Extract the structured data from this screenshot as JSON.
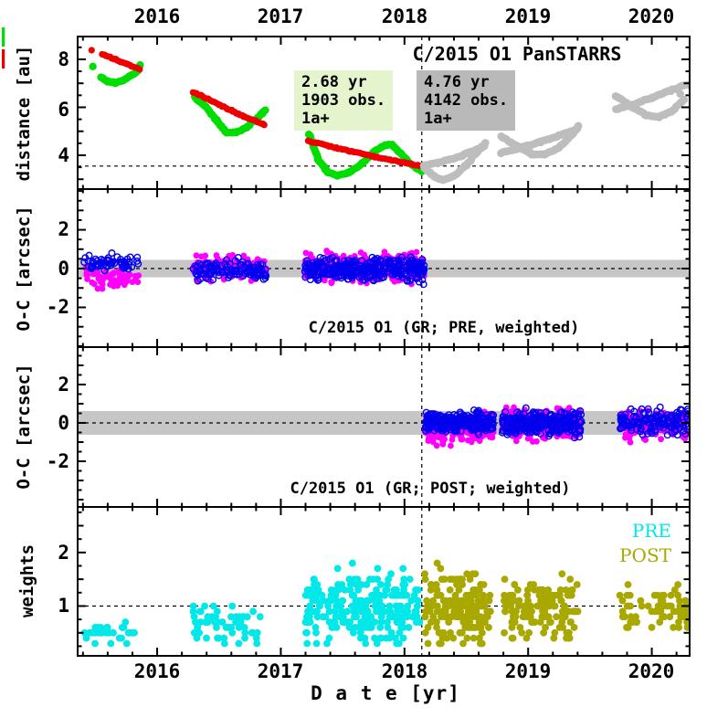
{
  "colors": {
    "red": "#ee0000",
    "green": "#00dd00",
    "gray": "#bdbdbd",
    "blue": "#0000ee",
    "magenta": "#ff00ff",
    "cyan": "#00e8e8",
    "olive": "#a8a800",
    "band": "#c6c6c6",
    "ann_green_bg": "#e4f4cc",
    "ann_gray_bg": "#b9b9b9",
    "axis": "#000000"
  },
  "axis": {
    "x_title": "D a t e [yr]",
    "x_tick_labels": [
      "2016",
      "2017",
      "2018",
      "2019",
      "2020"
    ],
    "x_tick_years": [
      2016,
      2017,
      2018,
      2019,
      2020
    ],
    "x_minor_step": 0.2,
    "x_range": [
      2015.357,
      2020.306
    ]
  },
  "legend_marks": [
    {
      "name": "geocentric-mark",
      "color_key": "green"
    },
    {
      "name": "heliocentric-mark",
      "color_key": "red"
    }
  ],
  "chart_data": [
    {
      "type": "scatter",
      "title": "C/2015 O1 PanSTARRS",
      "ylabel": "distance [au]",
      "ylim": [
        2.59,
        8.95
      ],
      "yticks": [
        4,
        6,
        8
      ],
      "ytick_labels": [
        "4",
        "6",
        "8"
      ],
      "yminor": 0.5,
      "ymedium": 1.0,
      "hline": 3.55,
      "vline": 2018.14,
      "annotations": [
        {
          "lines": [
            "2.68 yr",
            "1903 obs.",
            "1a+"
          ],
          "bg_key": "ann_green_bg"
        },
        {
          "lines": [
            "4.76 yr",
            "4142 obs.",
            "1a+"
          ],
          "bg_key": "ann_gray_bg"
        }
      ],
      "series": [
        {
          "name": "distance-geocentric-observed",
          "color_key": "green",
          "marker": "dot",
          "r": 4.2,
          "curves": [
            [
              [
                2015.545,
                7.26
              ],
              [
                2015.6,
                7.08
              ],
              [
                2015.66,
                7.02
              ],
              [
                2015.72,
                7.12
              ],
              [
                2015.79,
                7.32
              ],
              [
                2015.85,
                7.55
              ]
            ],
            [
              [
                2016.3,
                6.42
              ],
              [
                2016.4,
                6.0
              ],
              [
                2016.48,
                5.46
              ],
              [
                2016.56,
                4.95
              ],
              [
                2016.64,
                4.96
              ],
              [
                2016.72,
                5.16
              ],
              [
                2016.79,
                5.45
              ],
              [
                2016.85,
                5.75
              ],
              [
                2016.875,
                5.86
              ]
            ],
            [
              [
                2017.23,
                4.88
              ],
              [
                2017.3,
                3.82
              ],
              [
                2017.38,
                3.3
              ],
              [
                2017.46,
                3.15
              ],
              [
                2017.56,
                3.3
              ],
              [
                2017.66,
                3.66
              ],
              [
                2017.76,
                4.16
              ],
              [
                2017.84,
                4.43
              ],
              [
                2017.9,
                4.42
              ],
              [
                2017.97,
                4.08
              ],
              [
                2018.05,
                3.64
              ],
              [
                2018.14,
                3.32
              ]
            ]
          ],
          "dots": [
            [
              2015.48,
              7.7
            ],
            [
              2015.862,
              7.76
            ]
          ]
        },
        {
          "name": "distance-heliocentric-observed",
          "color_key": "red",
          "marker": "dot",
          "r": 3.6,
          "curves": [
            [
              [
                2015.555,
                8.22
              ],
              [
                2015.65,
                8.02
              ],
              [
                2015.75,
                7.82
              ],
              [
                2015.86,
                7.58
              ]
            ],
            [
              [
                2016.29,
                6.64
              ],
              [
                2016.5,
                6.12
              ],
              [
                2016.7,
                5.62
              ],
              [
                2016.87,
                5.28
              ]
            ],
            [
              [
                2017.22,
                4.6
              ],
              [
                2017.45,
                4.3
              ],
              [
                2017.7,
                4.0
              ],
              [
                2017.95,
                3.74
              ],
              [
                2018.14,
                3.55
              ]
            ]
          ],
          "dots": [
            [
              2015.47,
              8.38
            ]
          ]
        },
        {
          "name": "distance-predicted-post-arc",
          "color_key": "gray",
          "marker": "dot",
          "r": 4.3,
          "curves": [
            [
              [
                2018.16,
                3.48
              ],
              [
                2018.24,
                3.12
              ],
              [
                2018.31,
                2.98
              ],
              [
                2018.4,
                3.13
              ],
              [
                2018.5,
                3.6
              ],
              [
                2018.6,
                4.2
              ],
              [
                2018.65,
                4.5
              ]
            ],
            [
              [
                2018.16,
                3.58
              ],
              [
                2018.3,
                3.73
              ],
              [
                2018.45,
                3.96
              ],
              [
                2018.58,
                4.22
              ],
              [
                2018.65,
                4.4
              ]
            ],
            [
              [
                2018.78,
                4.78
              ],
              [
                2018.92,
                4.34
              ],
              [
                2019.03,
                4.05
              ],
              [
                2019.13,
                4.03
              ],
              [
                2019.25,
                4.32
              ],
              [
                2019.36,
                4.88
              ],
              [
                2019.41,
                5.22
              ]
            ],
            [
              [
                2018.78,
                4.1
              ],
              [
                2018.95,
                4.33
              ],
              [
                2019.1,
                4.56
              ],
              [
                2019.25,
                4.82
              ],
              [
                2019.4,
                5.1
              ]
            ],
            [
              [
                2019.71,
                6.48
              ],
              [
                2019.84,
                6.02
              ],
              [
                2019.96,
                5.66
              ],
              [
                2020.06,
                5.6
              ],
              [
                2020.16,
                5.83
              ],
              [
                2020.26,
                6.3
              ]
            ],
            [
              [
                2019.71,
                5.92
              ],
              [
                2019.85,
                6.12
              ],
              [
                2020.0,
                6.4
              ],
              [
                2020.15,
                6.7
              ],
              [
                2020.29,
                6.96
              ]
            ]
          ],
          "dots": [
            [
              2020.23,
              6.56
            ]
          ]
        }
      ]
    },
    {
      "type": "scatter",
      "inner_label": "C/2015 O1 (GR; PRE, weighted)",
      "ylabel": "O-C [arcsec]",
      "ylim": [
        -4.05,
        4.1
      ],
      "yticks": [
        -2,
        0,
        2
      ],
      "ytick_labels": [
        "-2",
        "0",
        "2"
      ],
      "yminor": 0.5,
      "ymedium": 1.0,
      "band": 0.45,
      "hline": 0,
      "vline": 2018.14,
      "series": [
        {
          "name": "pre-residuals-dec",
          "color_key": "magenta",
          "marker": "fill",
          "r": 3.4,
          "clusters": [
            {
              "x0": 2015.41,
              "x1": 2015.85,
              "n": 60,
              "c": -0.45,
              "h": 0.75,
              "min": -1.35,
              "max": 0.4,
              "seed": 11
            },
            {
              "x0": 2016.29,
              "x1": 2016.88,
              "n": 115,
              "c": 0.05,
              "h": 0.95,
              "min": -1.05,
              "max": 1.4,
              "seed": 12
            },
            {
              "x0": 2017.19,
              "x1": 2018.16,
              "n": 310,
              "c": 0.05,
              "h": 1.0,
              "min": -1.3,
              "max": 1.5,
              "seed": 13
            }
          ]
        },
        {
          "name": "pre-residuals-ra",
          "color_key": "blue",
          "marker": "open",
          "r": 3.3,
          "clusters": [
            {
              "x0": 2015.41,
              "x1": 2015.85,
              "n": 60,
              "c": 0.3,
              "h": 0.55,
              "min": -0.4,
              "max": 1.0,
              "seed": 21
            },
            {
              "x0": 2016.29,
              "x1": 2016.88,
              "n": 120,
              "c": -0.05,
              "h": 0.75,
              "min": -1.3,
              "max": 0.95,
              "seed": 22
            },
            {
              "x0": 2017.19,
              "x1": 2018.16,
              "n": 340,
              "c": -0.05,
              "h": 0.85,
              "min": -1.45,
              "max": 1.15,
              "seed": 23
            }
          ]
        }
      ]
    },
    {
      "type": "scatter",
      "inner_label": "C/2015 O1 (GR; POST; weighted)",
      "ylabel": "O-C [arcsec]",
      "ylim": [
        -4.38,
        3.95
      ],
      "yticks": [
        -2,
        0,
        2
      ],
      "ytick_labels": [
        "-2",
        "0",
        "2"
      ],
      "yminor": 0.5,
      "ymedium": 1.0,
      "band": 0.62,
      "hline": 0,
      "vline": 2018.14,
      "series": [
        {
          "name": "post-residuals-dec",
          "color_key": "magenta",
          "marker": "fill",
          "r": 3.4,
          "clusters": [
            {
              "x0": 2018.17,
              "x1": 2018.72,
              "n": 250,
              "c": -0.25,
              "h": 1.0,
              "min": -1.8,
              "max": 0.95,
              "seed": 31
            },
            {
              "x0": 2018.79,
              "x1": 2019.43,
              "n": 250,
              "c": -0.05,
              "h": 1.05,
              "min": -1.65,
              "max": 1.45,
              "seed": 32
            },
            {
              "x0": 2019.74,
              "x1": 2020.3,
              "n": 130,
              "c": -0.1,
              "h": 1.05,
              "min": -1.65,
              "max": 1.35,
              "seed": 33
            }
          ]
        },
        {
          "name": "post-residuals-ra",
          "color_key": "blue",
          "marker": "open",
          "r": 3.3,
          "clusters": [
            {
              "x0": 2018.17,
              "x1": 2018.72,
              "n": 270,
              "c": 0.05,
              "h": 0.75,
              "min": -1.05,
              "max": 0.95,
              "seed": 41
            },
            {
              "x0": 2018.79,
              "x1": 2019.43,
              "n": 270,
              "c": 0.0,
              "h": 0.9,
              "min": -1.55,
              "max": 1.6,
              "seed": 42
            },
            {
              "x0": 2019.74,
              "x1": 2020.3,
              "n": 140,
              "c": 0.05,
              "h": 0.95,
              "min": -1.35,
              "max": 1.55,
              "seed": 43
            }
          ]
        }
      ]
    },
    {
      "type": "scatter",
      "ylabel": "weights",
      "ylim": [
        0.07,
        2.85
      ],
      "yticks": [
        1,
        2
      ],
      "ytick_labels": [
        "1",
        "2"
      ],
      "yminor": 0.25,
      "ymedium": 0.5,
      "hline": 1,
      "vline": 2018.14,
      "legend": [
        {
          "label": "PRE",
          "color_key": "cyan"
        },
        {
          "label": "POST",
          "color_key": "olive"
        }
      ],
      "series": [
        {
          "name": "weights-pre",
          "color_key": "cyan",
          "marker": "fill",
          "r": 3.9,
          "quant": 0.1,
          "clusters": [
            {
              "x0": 2015.41,
              "x1": 2015.82,
              "n": 30,
              "c": 0.48,
              "h": 0.22,
              "min": 0.3,
              "max": 0.82,
              "seed": 51
            },
            {
              "x0": 2016.29,
              "x1": 2016.85,
              "n": 55,
              "c": 0.65,
              "h": 0.55,
              "min": 0.3,
              "max": 1.5,
              "seed": 52
            },
            {
              "x0": 2017.19,
              "x1": 2018.13,
              "n": 240,
              "c": 0.95,
              "h": 0.95,
              "min": 0.3,
              "max": 2.35,
              "seed": 53
            }
          ]
        },
        {
          "name": "weights-post",
          "color_key": "olive",
          "marker": "fill",
          "r": 3.9,
          "quant": 0.1,
          "clusters": [
            {
              "x0": 2018.16,
              "x1": 2018.7,
              "n": 185,
              "c": 0.95,
              "h": 0.95,
              "min": 0.3,
              "max": 2.4,
              "seed": 61
            },
            {
              "x0": 2018.8,
              "x1": 2019.42,
              "n": 150,
              "c": 0.95,
              "h": 0.85,
              "min": 0.4,
              "max": 2.2,
              "seed": 62
            },
            {
              "x0": 2019.74,
              "x1": 2020.3,
              "n": 70,
              "c": 0.95,
              "h": 0.55,
              "min": 0.5,
              "max": 1.55,
              "seed": 63
            }
          ]
        }
      ]
    }
  ]
}
